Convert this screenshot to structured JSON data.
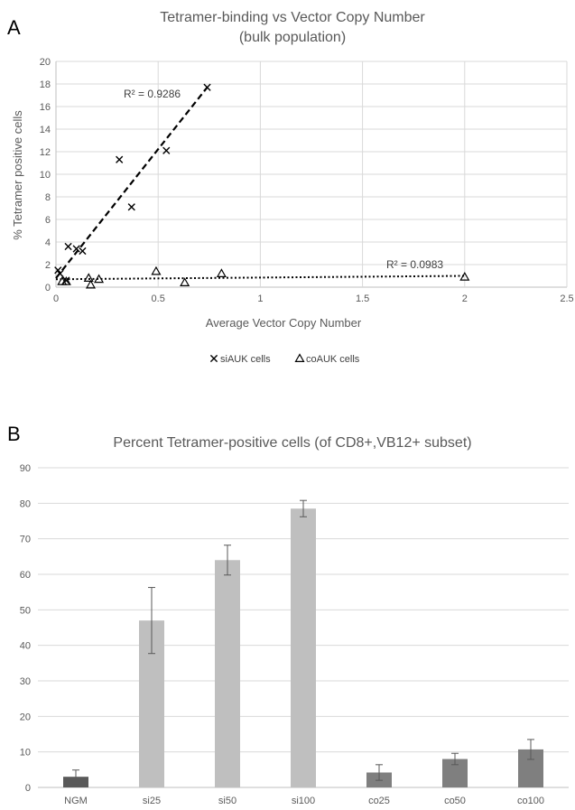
{
  "chart_data": [
    {
      "type": "scatter",
      "panel_label": "A",
      "title": "Tetramer-binding vs Vector Copy Number",
      "subtitle": "(bulk population)",
      "xlabel": "Average Vector Copy Number",
      "ylabel": "% Tetramer positive cells",
      "xlim": [
        0,
        2.5
      ],
      "ylim": [
        0,
        20
      ],
      "xticks": [
        0,
        0.5,
        1,
        1.5,
        2,
        2.5
      ],
      "yticks": [
        0,
        2,
        4,
        6,
        8,
        10,
        12,
        14,
        16,
        18,
        20
      ],
      "xtick_labels": [
        "0",
        "0.5",
        "1",
        "1.5",
        "2",
        "2.5"
      ],
      "ytick_labels": [
        "0",
        "2",
        "4",
        "6",
        "8",
        "10",
        "12",
        "14",
        "16",
        "18",
        "20"
      ],
      "grid": true,
      "legend_position": "bottom",
      "series": [
        {
          "name": "siAUK cells",
          "marker": "x",
          "x": [
            0.01,
            0.02,
            0.05,
            0.06,
            0.1,
            0.13,
            0.31,
            0.37,
            0.54,
            0.74
          ],
          "y": [
            1.5,
            1.2,
            0.6,
            3.6,
            3.4,
            3.2,
            11.3,
            7.1,
            12.1,
            17.7
          ],
          "trendline": {
            "style": "dashed",
            "x": [
              0,
              0.74
            ],
            "y": [
              0.8,
              17.7
            ],
            "label": "R² = 0.9286"
          }
        },
        {
          "name": "coAUK cells",
          "marker": "triangle",
          "x": [
            0.03,
            0.05,
            0.16,
            0.17,
            0.21,
            0.49,
            0.63,
            0.81,
            2.0
          ],
          "y": [
            0.5,
            0.5,
            0.8,
            0.2,
            0.7,
            1.4,
            0.4,
            1.2,
            0.9
          ],
          "trendline": {
            "style": "dotted",
            "x": [
              0,
              2.0
            ],
            "y": [
              0.7,
              1.0
            ],
            "label": "R² = 0.0983"
          }
        }
      ]
    },
    {
      "type": "bar",
      "panel_label": "B",
      "title": "Percent Tetramer-positive cells (of CD8+,VB12+ subset)",
      "categories": [
        "NGM",
        "si25",
        "si50",
        "si100",
        "co25",
        "co50",
        "co100"
      ],
      "values": [
        3.0,
        47.0,
        64.0,
        78.5,
        4.2,
        8.0,
        10.7
      ],
      "errors": [
        1.9,
        9.3,
        4.2,
        2.3,
        2.2,
        1.6,
        2.8
      ],
      "colors": [
        "#595959",
        "#bfbfbf",
        "#bfbfbf",
        "#bfbfbf",
        "#7f7f7f",
        "#7f7f7f",
        "#7f7f7f"
      ],
      "ylim": [
        0,
        90
      ],
      "yticks": [
        0,
        10,
        20,
        30,
        40,
        50,
        60,
        70,
        80,
        90
      ],
      "ytick_labels": [
        "0",
        "10",
        "20",
        "30",
        "40",
        "50",
        "60",
        "70",
        "80",
        "90"
      ],
      "grid": true
    }
  ]
}
